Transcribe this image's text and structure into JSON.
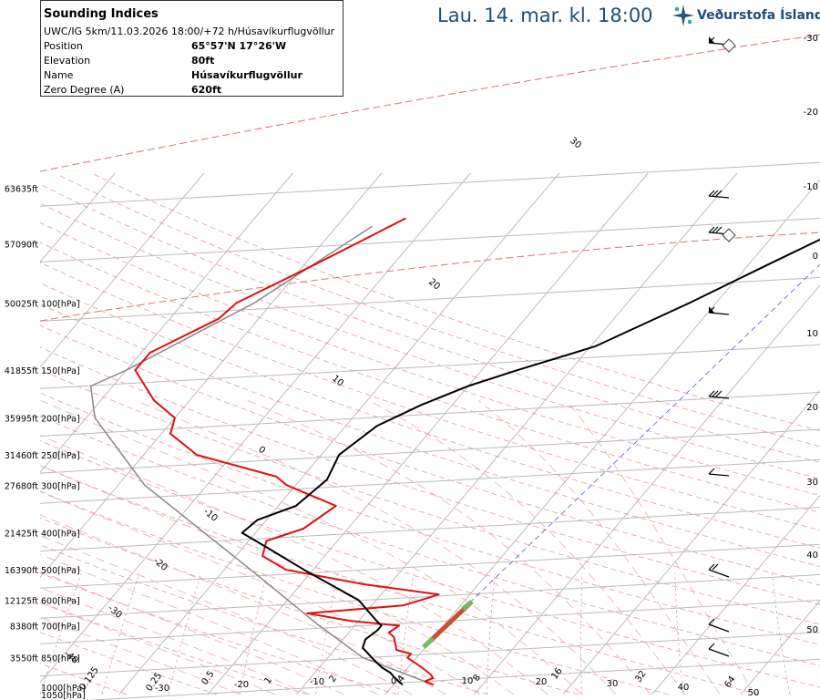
{
  "info": {
    "title": "Sounding Indices",
    "subtitle": "UWC/IG 5km/11.03.2026 18:00/+72 h/Húsavíkurflugvöllur",
    "rows": [
      {
        "label": "Position",
        "value": "65°57'N 17°26'W"
      },
      {
        "label": "Elevation",
        "value": "80ft"
      },
      {
        "label": "Name",
        "value": "Húsavíkurflugvöllur"
      },
      {
        "label": "Zero Degree (A)",
        "value": "620ft"
      }
    ]
  },
  "header": {
    "date": "Lau. 14. mar. kl. 18:00",
    "logo_text": "Veðurstofa Íslands"
  },
  "colors": {
    "temperature": "#dd1111",
    "dewpoint": "#000000",
    "parcel": "#888888",
    "isotherm": "#bbbbbb",
    "dry_adiabat": "#e08080",
    "moist_adiabat": "#e8a0a0",
    "isobar": "#bbbbbb",
    "brand": "#1f4e79"
  },
  "chart_data": {
    "type": "line",
    "pressure_levels_hpa": [
      1050,
      1000,
      850,
      700,
      600,
      500,
      400,
      300,
      250,
      200,
      150,
      100
    ],
    "pressure_labels": [
      "1050[hPa]",
      "1000[hPa]",
      "850[hPa]",
      "700[hPa]",
      "600[hPa]",
      "500[hPa]",
      "400[hPa]",
      "300[hPa]",
      "250[hPa]",
      "200[hPa]",
      "150[hPa]",
      "100[hPa]"
    ],
    "altitude_labels": [
      "3550ft",
      "8380ft",
      "12125ft",
      "16390ft",
      "21425ft",
      "27680ft",
      "31460ft",
      "35995ft",
      "41855ft",
      "50025ft",
      "57090ft",
      "63635ft"
    ],
    "altitude_label_pressures": [
      850,
      700,
      600,
      500,
      400,
      300,
      250,
      200,
      150,
      100,
      70,
      50
    ],
    "right_axis_labels": [
      "-30",
      "-20",
      "-10",
      "0",
      "10",
      "20",
      "30",
      "40",
      "50"
    ],
    "isotherm_labels": [
      "-40",
      "-30",
      "-20",
      "-10",
      "0",
      "10",
      "20",
      "30"
    ],
    "bottom_temp_labels": [
      "-30",
      "-20",
      "-10",
      "0",
      "10",
      "20",
      "30",
      "40",
      "50"
    ],
    "mixing_ratio_labels": [
      "0.125",
      "0.25",
      "0.5",
      "1",
      "2",
      "4",
      "8",
      "16",
      "32",
      "64"
    ],
    "temperature_profile": [
      {
        "p": 1000,
        "t": 4.5
      },
      {
        "p": 980,
        "t": 3.2
      },
      {
        "p": 960,
        "t": 3.8
      },
      {
        "p": 940,
        "t": 3.2
      },
      {
        "p": 900,
        "t": 1.5
      },
      {
        "p": 850,
        "t": -1.0
      },
      {
        "p": 830,
        "t": -1.0
      },
      {
        "p": 810,
        "t": -3.0
      },
      {
        "p": 750,
        "t": -4.5
      },
      {
        "p": 730,
        "t": -5.5
      },
      {
        "p": 700,
        "t": -5.0
      },
      {
        "p": 680,
        "t": -11.0
      },
      {
        "p": 650,
        "t": -16.5
      },
      {
        "p": 620,
        "t": -6.5
      },
      {
        "p": 600,
        "t": -5.0
      },
      {
        "p": 580,
        "t": -3.5
      },
      {
        "p": 545,
        "t": -13.0
      },
      {
        "p": 500,
        "t": -23.0
      },
      {
        "p": 460,
        "t": -27.0
      },
      {
        "p": 420,
        "t": -28.0
      },
      {
        "p": 390,
        "t": -25.0
      },
      {
        "p": 340,
        "t": -23.5
      },
      {
        "p": 300,
        "t": -31.0
      },
      {
        "p": 285,
        "t": -33.0
      },
      {
        "p": 250,
        "t": -44.0
      },
      {
        "p": 220,
        "t": -49.0
      },
      {
        "p": 200,
        "t": -50.0
      },
      {
        "p": 180,
        "t": -54.0
      },
      {
        "p": 150,
        "t": -59.0
      },
      {
        "p": 135,
        "t": -59.0
      },
      {
        "p": 110,
        "t": -54.5
      },
      {
        "p": 100,
        "t": -54.0
      },
      {
        "p": 80,
        "t": -49.0
      },
      {
        "p": 60,
        "t": -43.0
      }
    ],
    "dewpoint_profile": [
      {
        "p": 1000,
        "t": 1.0
      },
      {
        "p": 960,
        "t": -0.5
      },
      {
        "p": 930,
        "t": -1.5
      },
      {
        "p": 900,
        "t": -3.0
      },
      {
        "p": 850,
        "t": -5.0
      },
      {
        "p": 800,
        "t": -7.0
      },
      {
        "p": 760,
        "t": -7.5
      },
      {
        "p": 720,
        "t": -7.0
      },
      {
        "p": 700,
        "t": -7.0
      },
      {
        "p": 680,
        "t": -8.0
      },
      {
        "p": 600,
        "t": -12.0
      },
      {
        "p": 500,
        "t": -21.0
      },
      {
        "p": 440,
        "t": -27.0
      },
      {
        "p": 400,
        "t": -31.5
      },
      {
        "p": 370,
        "t": -31.0
      },
      {
        "p": 340,
        "t": -28.0
      },
      {
        "p": 290,
        "t": -27.0
      },
      {
        "p": 250,
        "t": -28.0
      },
      {
        "p": 210,
        "t": -26.5
      },
      {
        "p": 185,
        "t": -23.5
      },
      {
        "p": 165,
        "t": -20.0
      },
      {
        "p": 150,
        "t": -16.0
      },
      {
        "p": 130,
        "t": -9.5
      },
      {
        "p": 100,
        "t": -3.0
      },
      {
        "p": 80,
        "t": 2.0
      },
      {
        "p": 63,
        "t": 7.5
      }
    ],
    "parcel_profile": [
      {
        "p": 1000,
        "t": 4.5
      },
      {
        "p": 850,
        "t": -6.0
      },
      {
        "p": 700,
        "t": -14.0
      },
      {
        "p": 500,
        "t": -27.0
      },
      {
        "p": 300,
        "t": -47.0
      },
      {
        "p": 200,
        "t": -59.0
      },
      {
        "p": 165,
        "t": -62.5
      },
      {
        "p": 150,
        "t": -60.0
      },
      {
        "p": 100,
        "t": -52.0
      },
      {
        "p": 63,
        "t": -46.0
      }
    ],
    "wind_barb_levels": [
      60,
      150,
      200,
      300,
      400,
      500,
      700,
      850,
      925
    ],
    "xlabel": "",
    "ylabel": "",
    "grid": true
  }
}
